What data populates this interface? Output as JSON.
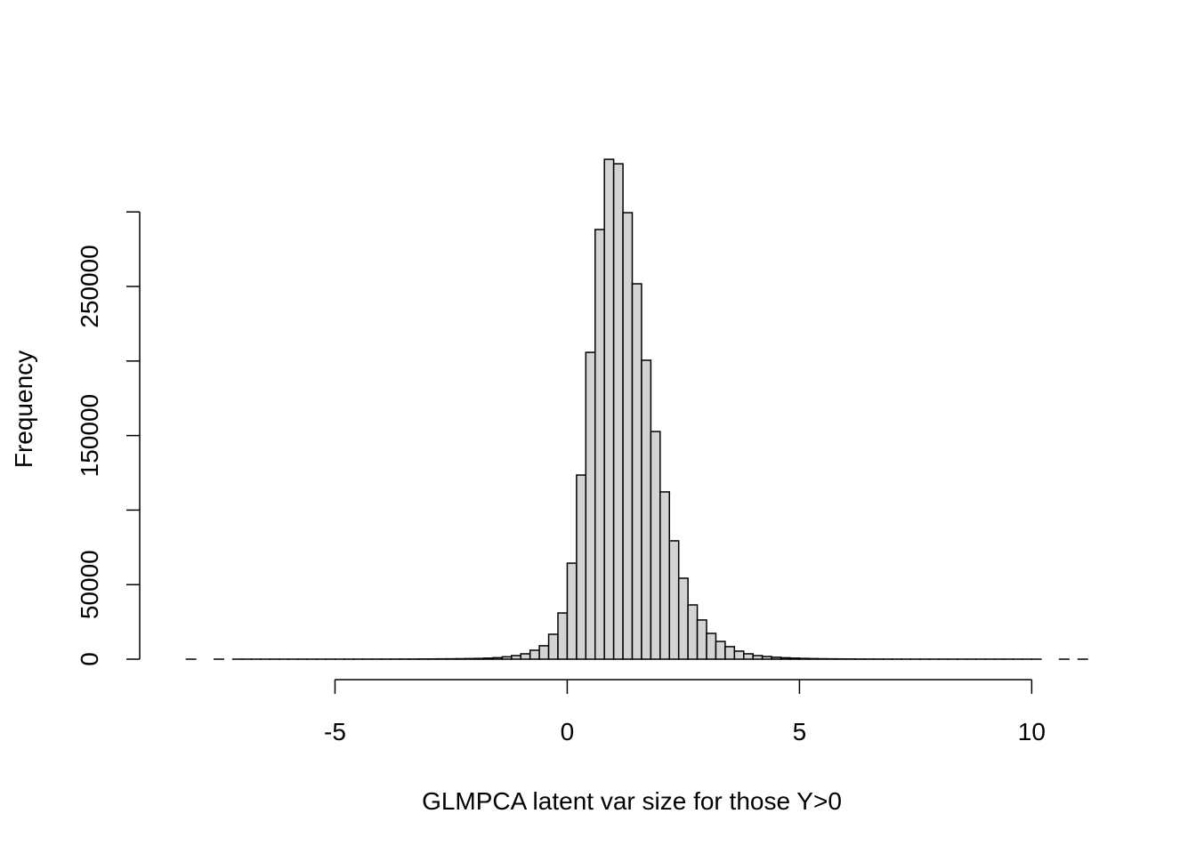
{
  "chart_data": {
    "type": "histogram",
    "xlabel": "GLMPCA latent var size for those Y>0",
    "ylabel": "Frequency",
    "bins": [
      -8.4,
      -8.2,
      -8.0,
      -7.8,
      -7.6,
      -7.4,
      -7.2,
      -7.0,
      -6.8,
      -6.6,
      -6.4,
      -6.2,
      -6.0,
      -5.8,
      -5.6,
      -5.4,
      -5.2,
      -5.0,
      -4.8,
      -4.6,
      -4.4,
      -4.2,
      -4.0,
      -3.8,
      -3.6,
      -3.4,
      -3.2,
      -3.0,
      -2.8,
      -2.6,
      -2.4,
      -2.2,
      -2.0,
      -1.8,
      -1.6,
      -1.4,
      -1.2,
      -1.0,
      -0.8,
      -0.6,
      -0.4,
      -0.2,
      0.0,
      0.2,
      0.4,
      0.6,
      0.8,
      1.0,
      1.2,
      1.4,
      1.6,
      1.8,
      2.0,
      2.2,
      2.4,
      2.6,
      2.8,
      3.0,
      3.2,
      3.4,
      3.6,
      3.8,
      4.0,
      4.2,
      4.4,
      4.6,
      4.8,
      5.0,
      5.2,
      5.4,
      5.6,
      5.8,
      6.0,
      6.2,
      6.4,
      6.6,
      6.8,
      7.0,
      7.2,
      7.4,
      7.6,
      7.8,
      8.0,
      8.2,
      8.4,
      8.6,
      8.8,
      9.0,
      9.2,
      9.4,
      9.6,
      9.8,
      10.0,
      10.2,
      10.4,
      10.6,
      10.8,
      11.0,
      11.2
    ],
    "values": [
      0,
      1,
      0,
      0,
      1,
      0,
      1,
      1,
      1,
      2,
      2,
      3,
      4,
      5,
      6,
      8,
      10,
      13,
      17,
      22,
      28,
      36,
      46,
      58,
      74,
      94,
      120,
      150,
      190,
      240,
      310,
      400,
      500,
      700,
      1000,
      1600,
      2400,
      3600,
      6000,
      9000,
      16700,
      31000,
      64400,
      123500,
      205800,
      288200,
      335300,
      332300,
      299500,
      251800,
      200500,
      152700,
      112200,
      79400,
      54300,
      36400,
      26300,
      17300,
      11900,
      8400,
      5400,
      3600,
      2400,
      1800,
      1300,
      950,
      700,
      520,
      390,
      290,
      220,
      165,
      125,
      95,
      72,
      55,
      42,
      32,
      24,
      18,
      14,
      11,
      8,
      6,
      5,
      4,
      3,
      2,
      2,
      1,
      1,
      1,
      1,
      0,
      0,
      1,
      0,
      1
    ],
    "color": "#d3d3d3",
    "xlim": [
      -8.4,
      11.2
    ],
    "xticks": [
      -5,
      0,
      5,
      10
    ],
    "ylim": [
      0,
      340000
    ],
    "yticks": [
      0,
      50000,
      100000,
      150000,
      200000,
      250000,
      300000
    ],
    "ytick_labels": [
      0,
      50000,
      150000,
      250000
    ]
  }
}
